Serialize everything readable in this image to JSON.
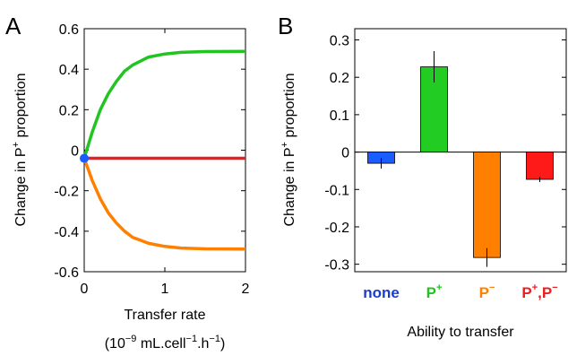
{
  "chart_data": [
    {
      "panel": "A",
      "type": "line",
      "xlabel": "Transfer rate",
      "xlabel_units": {
        "base": "(10",
        "exp1": "−9",
        "mid1": " mL.cell",
        "exp2": "−1",
        "mid2": ".h",
        "exp3": "−1",
        "end": ")"
      },
      "ylabel": {
        "pre": "Change in P",
        "sup": "+",
        "post": " proportion"
      },
      "xlim": [
        0,
        2
      ],
      "ylim": [
        -0.6,
        0.6
      ],
      "xticks": [
        "0",
        "1",
        "2"
      ],
      "yticks": [
        "-0.6",
        "-0.4",
        "-0.2",
        "0",
        "0.2",
        "0.4",
        "0.6"
      ],
      "series": [
        {
          "color": "#22c422",
          "x": [
            0,
            0.1,
            0.2,
            0.3,
            0.4,
            0.5,
            0.6,
            0.8,
            1.0,
            1.2,
            1.5,
            2.0
          ],
          "y": [
            -0.04,
            0.09,
            0.2,
            0.28,
            0.34,
            0.39,
            0.42,
            0.46,
            0.475,
            0.483,
            0.487,
            0.488
          ]
        },
        {
          "color": "#ff8000",
          "x": [
            0,
            0.1,
            0.2,
            0.3,
            0.4,
            0.5,
            0.6,
            0.8,
            1.0,
            1.2,
            1.5,
            2.0
          ],
          "y": [
            -0.04,
            -0.15,
            -0.24,
            -0.31,
            -0.36,
            -0.4,
            -0.43,
            -0.46,
            -0.475,
            -0.483,
            -0.487,
            -0.488
          ]
        },
        {
          "color": "#e82020",
          "x": [
            0,
            2.0
          ],
          "y": [
            -0.04,
            -0.04
          ]
        }
      ],
      "marker": {
        "x": 0,
        "y": -0.04,
        "color": "#1a5cff"
      }
    },
    {
      "panel": "B",
      "type": "bar",
      "title": "Ability to transfer",
      "ylabel": {
        "pre": "Change in P",
        "sup": "+",
        "post": " proportion"
      },
      "ylim": [
        -0.32,
        0.33
      ],
      "yticks": [
        "-0.3",
        "-0.2",
        "-0.1",
        "0",
        "0.1",
        "0.2",
        "0.3"
      ],
      "categories": [
        {
          "base": "none",
          "sup": "",
          "base2": "",
          "sup2": "",
          "color": "#1a3ccf"
        },
        {
          "base": "P",
          "sup": "+",
          "base2": "",
          "sup2": "",
          "color": "#22c422"
        },
        {
          "base": "P",
          "sup": "−",
          "base2": "",
          "sup2": "",
          "color": "#ff8000"
        },
        {
          "base": "P",
          "sup": "+",
          "base2": ",P",
          "sup2": "−",
          "color": "#e82020"
        }
      ],
      "values": [
        -0.03,
        0.228,
        -0.282,
        -0.073
      ],
      "errors": [
        0.014,
        0.042,
        0.025,
        0.007
      ],
      "bar_colors": [
        "#1a5cff",
        "#22cc22",
        "#ff8000",
        "#ff1a1a"
      ]
    }
  ],
  "panel_labels": [
    "A",
    "B"
  ]
}
